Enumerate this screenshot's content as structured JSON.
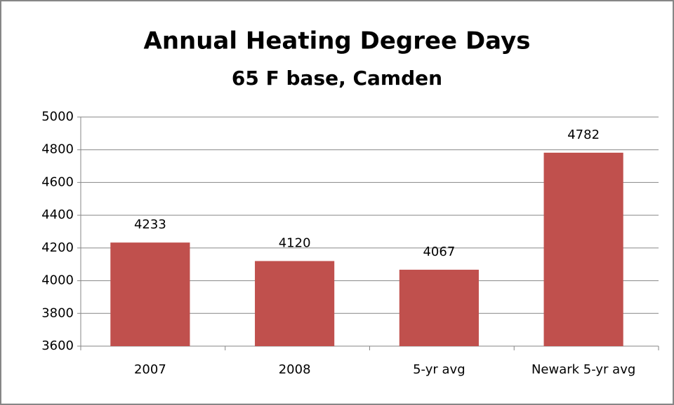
{
  "chart_data": {
    "type": "bar",
    "title": "Annual Heating Degree Days",
    "subtitle": "65 F base, Camden",
    "categories": [
      "2007",
      "2008",
      "5-yr avg",
      "Newark 5-yr avg"
    ],
    "values": [
      4233,
      4120,
      4067,
      4782
    ],
    "color": "#c0504d",
    "ylim": [
      3600,
      5000
    ],
    "yticks": [
      3600,
      3800,
      4000,
      4200,
      4400,
      4600,
      4800,
      5000
    ],
    "grid": true
  }
}
